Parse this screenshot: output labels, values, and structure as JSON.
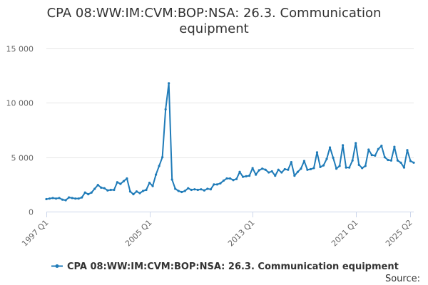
{
  "chart_data": {
    "type": "line",
    "title": "CPA 08:WW:IM:CVM:BOP:NSA: 26.3. Communication equipment",
    "title_lines": [
      "CPA 08:WW:IM:CVM:BOP:NSA: 26.3. Communication",
      "equipment"
    ],
    "xlabel": "",
    "ylabel": "",
    "x_tick_labels": [
      "1997 Q1",
      "2005 Q1",
      "2013 Q1",
      "2021 Q1",
      "2025 Q2"
    ],
    "y_ticks": [
      0,
      5000,
      10000,
      15000
    ],
    "y_tick_labels": [
      "0",
      "5 000",
      "10 000",
      "15 000"
    ],
    "ylim": [
      0,
      15000
    ],
    "x_range": [
      "1997 Q1",
      "2025 Q2"
    ],
    "grid": "horizontal",
    "legend_position": "bottom",
    "source_label": "Source:",
    "colors": {
      "series": "#1f7bb8",
      "grid": "#e6e6e6",
      "axis": "#ccd6eb"
    },
    "series": [
      {
        "name": "CPA 08:WW:IM:CVM:BOP:NSA: 26.3. Communication equipment",
        "start": "1997 Q1",
        "values": [
          1150,
          1200,
          1250,
          1200,
          1250,
          1100,
          1050,
          1300,
          1250,
          1200,
          1200,
          1300,
          1750,
          1600,
          1750,
          2100,
          2450,
          2200,
          2150,
          1950,
          2000,
          2000,
          2700,
          2550,
          2800,
          3050,
          1850,
          1600,
          1850,
          1700,
          1900,
          2000,
          2650,
          2350,
          3400,
          4200,
          5000,
          9400,
          11800,
          2950,
          2100,
          1900,
          1800,
          1900,
          2150,
          2000,
          2050,
          2000,
          2050,
          1950,
          2100,
          2050,
          2500,
          2500,
          2600,
          2850,
          3050,
          3050,
          2900,
          3000,
          3650,
          3200,
          3250,
          3300,
          4000,
          3400,
          3800,
          3950,
          3850,
          3600,
          3700,
          3300,
          3850,
          3600,
          3900,
          3850,
          4550,
          3300,
          3650,
          3950,
          4650,
          3850,
          3900,
          4000,
          5450,
          4100,
          4250,
          4850,
          5900,
          4950,
          3950,
          4200,
          6100,
          4050,
          4050,
          4700,
          6300,
          4300,
          4000,
          4200,
          5700,
          5200,
          5150,
          5750,
          6050,
          5000,
          4750,
          4700,
          5950,
          4700,
          4500,
          4050,
          5650,
          4650,
          4500
        ]
      }
    ]
  }
}
